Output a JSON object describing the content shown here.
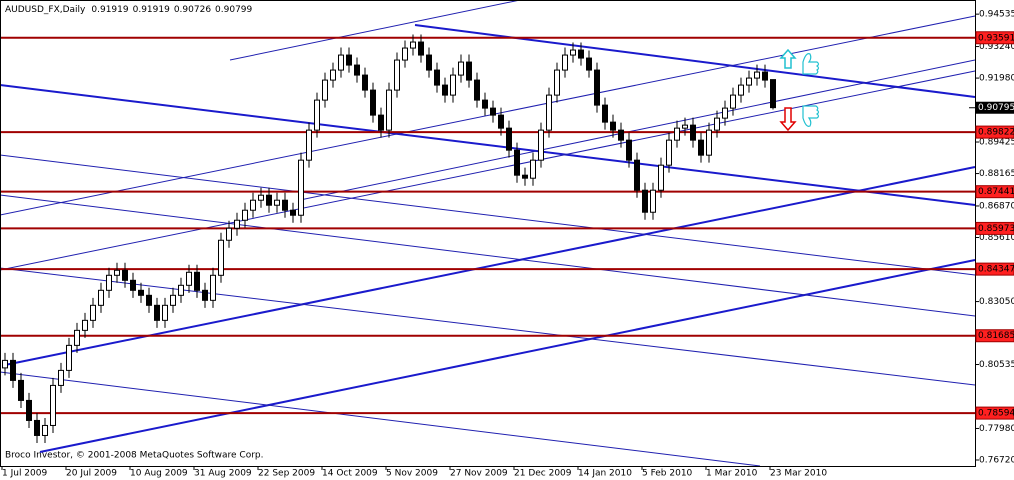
{
  "chart_data": {
    "type": "candlestick",
    "title": "AUDUSD_FX,Daily",
    "footer": "Broco Investor, © 2001-2008 MetaQuotes Software Corp.",
    "categories": [
      "1 Jul 2009",
      null,
      null,
      null,
      null,
      null,
      null,
      null,
      "20 Jul 2009",
      null,
      null,
      null,
      null,
      null,
      null,
      null,
      "10 Aug 2009",
      null,
      null,
      null,
      null,
      null,
      null,
      null,
      "31 Aug 2009",
      null,
      null,
      null,
      null,
      null,
      null,
      null,
      "22 Sep 2009",
      null,
      null,
      null,
      null,
      null,
      null,
      null,
      "14 Oct 2009",
      null,
      null,
      null,
      null,
      null,
      null,
      null,
      "5 Nov 2009",
      null,
      null,
      null,
      null,
      null,
      null,
      null,
      "27 Nov 2009",
      null,
      null,
      null,
      null,
      null,
      null,
      null,
      "21 Dec 2009",
      null,
      null,
      null,
      null,
      null,
      null,
      null,
      "14 Jan 2010",
      null,
      null,
      null,
      null,
      null,
      null,
      null,
      "5 Feb 2010",
      null,
      null,
      null,
      null,
      null,
      null,
      null,
      "1 Mar 2010",
      null,
      null,
      null,
      null,
      null,
      null,
      null,
      "23 Mar 2010"
    ],
    "open": [
      0.804,
      0.807,
      0.799,
      0.791,
      0.783,
      0.777,
      0.781,
      0.797,
      0.803,
      0.813,
      0.819,
      0.823,
      0.829,
      0.835,
      0.841,
      0.843,
      0.839,
      0.835,
      0.833,
      0.829,
      0.823,
      0.829,
      0.833,
      0.837,
      0.8422,
      0.835,
      0.831,
      0.841,
      0.855,
      0.8598,
      0.863,
      0.867,
      0.871,
      0.873,
      0.869,
      0.871,
      0.867,
      0.865,
      0.887,
      0.899,
      0.911,
      0.919,
      0.923,
      0.929,
      0.925,
      0.921,
      0.915,
      0.905,
      0.899,
      0.915,
      0.927,
      0.9318,
      0.9342,
      0.929,
      0.923,
      0.917,
      0.913,
      0.921,
      0.9262,
      0.919,
      0.911,
      0.9078,
      0.905,
      0.8998,
      0.891,
      0.881,
      0.8798,
      0.887,
      0.899,
      0.913,
      0.923,
      0.929,
      0.931,
      0.9278,
      0.923,
      0.909,
      0.9022,
      0.899,
      0.895,
      0.887,
      0.875,
      0.8662,
      0.875,
      0.885,
      0.895,
      0.8998,
      0.901,
      0.895,
      0.889,
      0.899,
      0.9038,
      0.9078,
      0.913,
      0.917,
      0.9198,
      0.9222,
      0.91919
    ],
    "high": [
      0.81,
      0.81,
      0.802,
      0.794,
      0.786,
      0.784,
      0.8,
      0.806,
      0.816,
      0.822,
      0.826,
      0.832,
      0.838,
      0.844,
      0.846,
      0.846,
      0.842,
      0.838,
      0.836,
      0.832,
      0.832,
      0.836,
      0.84,
      0.8452,
      0.8452,
      0.838,
      0.844,
      0.858,
      0.8628,
      0.866,
      0.87,
      0.874,
      0.876,
      0.876,
      0.874,
      0.874,
      0.87,
      0.89,
      0.902,
      0.914,
      0.922,
      0.926,
      0.932,
      0.932,
      0.928,
      0.924,
      0.918,
      0.908,
      0.918,
      0.93,
      0.9348,
      0.9372,
      0.9372,
      0.932,
      0.926,
      0.92,
      0.924,
      0.9292,
      0.9292,
      0.922,
      0.914,
      0.9108,
      0.908,
      0.9028,
      0.894,
      0.884,
      0.89,
      0.902,
      0.916,
      0.926,
      0.932,
      0.934,
      0.934,
      0.9308,
      0.926,
      0.912,
      0.9052,
      0.902,
      0.898,
      0.89,
      0.878,
      0.878,
      0.888,
      0.898,
      0.9028,
      0.904,
      0.904,
      0.898,
      0.902,
      0.9068,
      0.9108,
      0.916,
      0.92,
      0.9228,
      0.9252,
      0.9252,
      0.91919
    ],
    "low": [
      0.801,
      0.796,
      0.788,
      0.78,
      0.774,
      0.774,
      0.778,
      0.794,
      0.8,
      0.81,
      0.816,
      0.82,
      0.826,
      0.832,
      0.838,
      0.836,
      0.832,
      0.83,
      0.826,
      0.82,
      0.82,
      0.826,
      0.83,
      0.834,
      0.832,
      0.828,
      0.828,
      0.838,
      0.852,
      0.8568,
      0.86,
      0.864,
      0.868,
      0.866,
      0.866,
      0.864,
      0.862,
      0.862,
      0.884,
      0.896,
      0.908,
      0.916,
      0.92,
      0.922,
      0.918,
      0.912,
      0.902,
      0.896,
      0.896,
      0.912,
      0.924,
      0.9288,
      0.926,
      0.92,
      0.914,
      0.91,
      0.91,
      0.918,
      0.916,
      0.908,
      0.9048,
      0.902,
      0.8968,
      0.888,
      0.878,
      0.8768,
      0.8768,
      0.884,
      0.896,
      0.91,
      0.92,
      0.926,
      0.9248,
      0.92,
      0.906,
      0.8992,
      0.896,
      0.892,
      0.884,
      0.872,
      0.8632,
      0.8632,
      0.872,
      0.882,
      0.892,
      0.8968,
      0.892,
      0.886,
      0.886,
      0.896,
      0.9008,
      0.9048,
      0.91,
      0.914,
      0.9168,
      0.916,
      0.90726
    ],
    "close": [
      0.807,
      0.799,
      0.791,
      0.783,
      0.777,
      0.781,
      0.797,
      0.803,
      0.813,
      0.819,
      0.823,
      0.829,
      0.835,
      0.841,
      0.843,
      0.839,
      0.835,
      0.833,
      0.829,
      0.823,
      0.829,
      0.833,
      0.837,
      0.8422,
      0.835,
      0.831,
      0.841,
      0.855,
      0.8598,
      0.863,
      0.867,
      0.871,
      0.873,
      0.869,
      0.871,
      0.867,
      0.865,
      0.887,
      0.899,
      0.911,
      0.919,
      0.923,
      0.929,
      0.925,
      0.921,
      0.915,
      0.905,
      0.899,
      0.915,
      0.927,
      0.9318,
      0.9342,
      0.929,
      0.923,
      0.917,
      0.913,
      0.921,
      0.9262,
      0.919,
      0.911,
      0.9078,
      0.905,
      0.8998,
      0.891,
      0.881,
      0.8798,
      0.887,
      0.899,
      0.913,
      0.923,
      0.929,
      0.931,
      0.9278,
      0.923,
      0.909,
      0.9022,
      0.899,
      0.895,
      0.887,
      0.875,
      0.8662,
      0.875,
      0.885,
      0.895,
      0.8998,
      0.901,
      0.895,
      0.889,
      0.899,
      0.9038,
      0.9078,
      0.913,
      0.917,
      0.9198,
      0.9222,
      0.919,
      0.90799
    ],
    "ylim": [
      0.7648,
      0.951
    ],
    "yticks": [
      0.94535,
      {
        "value": 0.9324,
        "label": "0.93240"
      },
      {
        "value": 0.9198,
        "label": "0.91980"
      },
      0.89425,
      0.88165,
      {
        "value": 0.8687,
        "label": "0.86870"
      },
      {
        "value": 0.8561,
        "label": "0.85610"
      },
      {
        "value": 0.8305,
        "label": "0.83050"
      },
      0.80535,
      {
        "value": 0.7798,
        "label": "0.77980"
      },
      {
        "value": 0.7672,
        "label": "0.76720"
      }
    ],
    "levels": [
      0.93591,
      0.89822,
      0.87441,
      0.85973,
      0.84347,
      0.81685,
      0.78594
    ],
    "level_color": "#a00000",
    "bid": 0.90795,
    "grid": false
  }
}
